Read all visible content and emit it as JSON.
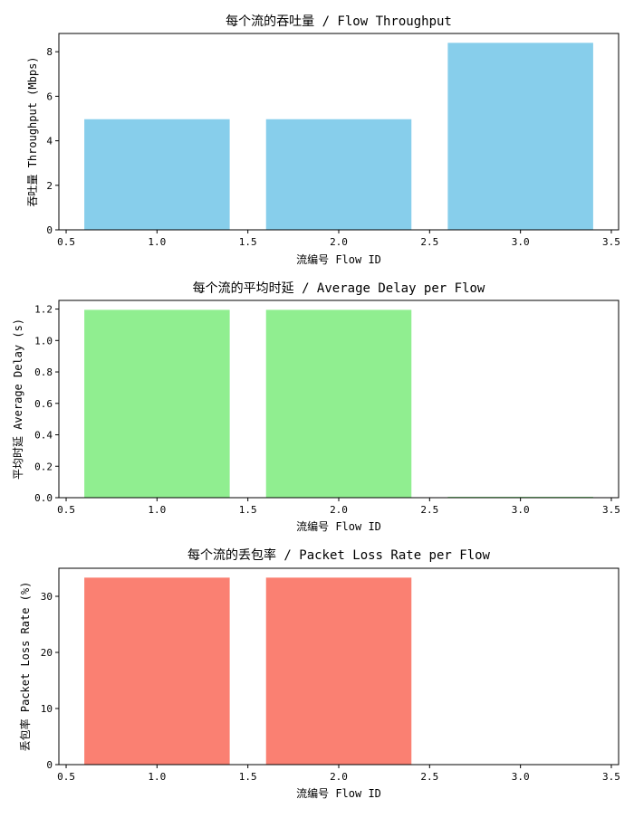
{
  "chart_data": [
    {
      "type": "bar",
      "title": "每个流的吞吐量 / Flow Throughput",
      "xlabel": "流编号 Flow ID",
      "ylabel": "吞吐量 Throughput (Mbps)",
      "x": [
        1,
        2,
        3
      ],
      "values": [
        4.97,
        4.97,
        8.4
      ],
      "bar_width": 0.8,
      "color": "#87CEEB",
      "xlim": [
        0.46,
        3.54
      ],
      "ylim": [
        0,
        8.82
      ],
      "xticks": [
        0.5,
        1.0,
        1.5,
        2.0,
        2.5,
        3.0,
        3.5
      ],
      "xtick_labels": [
        "0.5",
        "1.0",
        "1.5",
        "2.0",
        "2.5",
        "3.0",
        "3.5"
      ],
      "yticks": [
        0,
        2,
        4,
        6,
        8
      ],
      "ytick_labels": [
        "0",
        "2",
        "4",
        "6",
        "8"
      ],
      "grid": false
    },
    {
      "type": "bar",
      "title": "每个流的平均时延 / Average Delay per Flow",
      "xlabel": "流编号 Flow ID",
      "ylabel": "平均时延 Average Delay (s)",
      "x": [
        1,
        2,
        3
      ],
      "values": [
        1.195,
        1.195,
        0.002
      ],
      "bar_width": 0.8,
      "color": "#90EE90",
      "xlim": [
        0.46,
        3.54
      ],
      "ylim": [
        0,
        1.255
      ],
      "xticks": [
        0.5,
        1.0,
        1.5,
        2.0,
        2.5,
        3.0,
        3.5
      ],
      "xtick_labels": [
        "0.5",
        "1.0",
        "1.5",
        "2.0",
        "2.5",
        "3.0",
        "3.5"
      ],
      "yticks": [
        0,
        0.2,
        0.4,
        0.6,
        0.8,
        1.0,
        1.2
      ],
      "ytick_labels": [
        "0.0",
        "0.2",
        "0.4",
        "0.6",
        "0.8",
        "1.0",
        "1.2"
      ],
      "grid": false
    },
    {
      "type": "bar",
      "title": "每个流的丢包率 / Packet Loss Rate per Flow",
      "xlabel": "流编号 Flow ID",
      "ylabel": "丢包率 Packet Loss Rate (%)",
      "x": [
        1,
        2,
        3
      ],
      "values": [
        33.33,
        33.33,
        0
      ],
      "bar_width": 0.8,
      "color": "#FA8072",
      "xlim": [
        0.46,
        3.54
      ],
      "ylim": [
        0,
        35
      ],
      "xticks": [
        0.5,
        1.0,
        1.5,
        2.0,
        2.5,
        3.0,
        3.5
      ],
      "xtick_labels": [
        "0.5",
        "1.0",
        "1.5",
        "2.0",
        "2.5",
        "3.0",
        "3.5"
      ],
      "yticks": [
        0,
        10,
        20,
        30
      ],
      "ytick_labels": [
        "0",
        "10",
        "20",
        "30"
      ],
      "grid": false
    }
  ]
}
